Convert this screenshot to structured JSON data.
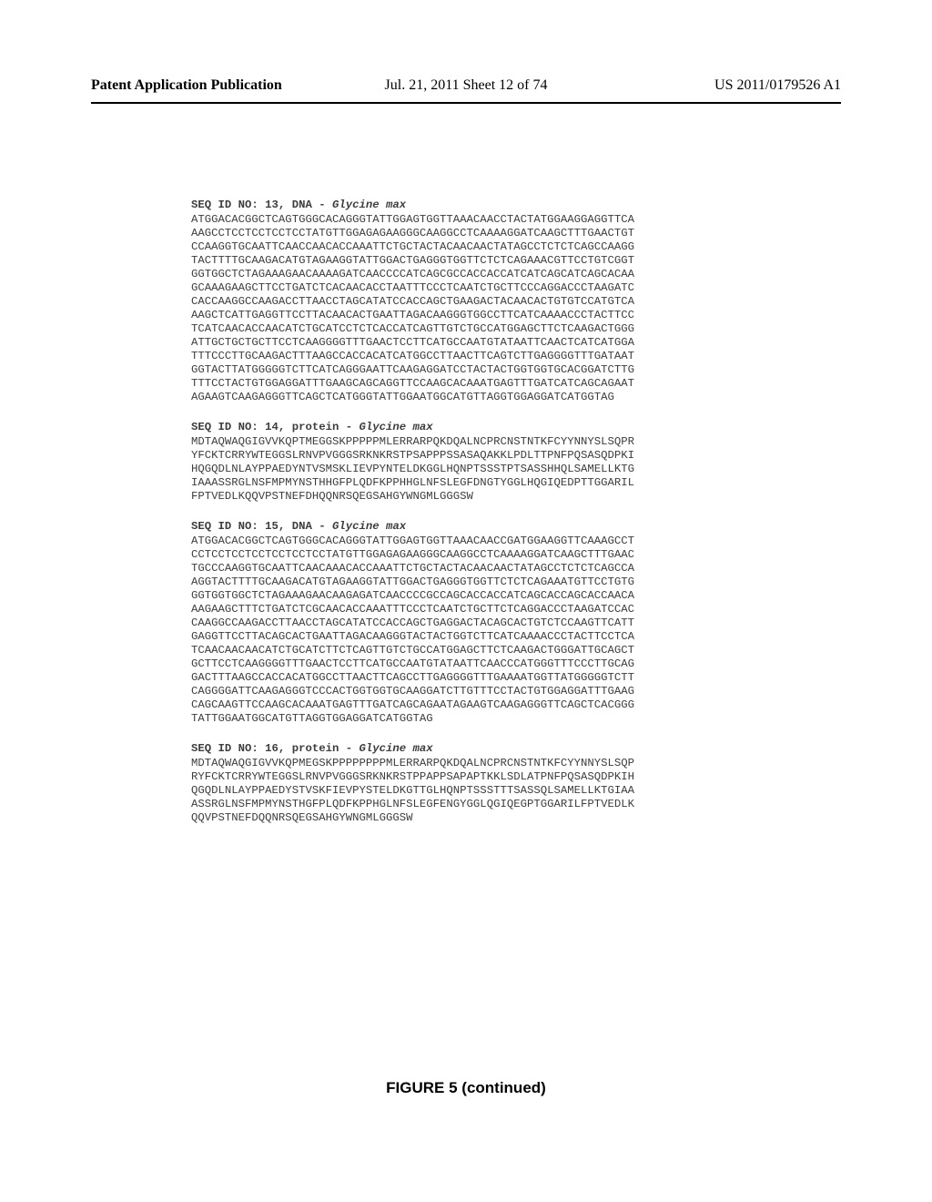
{
  "header": {
    "left": "Patent Application Publication",
    "middle": "Jul. 21, 2011  Sheet 12 of 74",
    "right": "US 2011/0179526 A1"
  },
  "figure_caption": "FIGURE 5 (continued)",
  "sequences": [
    {
      "title_prefix": "SEQ ID NO: 13, DNA - ",
      "organism": "Glycine max",
      "lines": [
        "ATGGACACGGCTCAGTGGGCACAGGGTATTGGAGTGGTTAAACAACCTACTATGGAAGGAGGTTCA",
        "AAGCCTCCTCCTCCTCCTATGTTGGAGAGAAGGGCAAGGCCTCAAAAGGATCAAGCTTTGAACTGT",
        "CCAAGGTGCAATTCAACCAACACCAAATTCTGCTACTACAACAACTATAGCCTCTCTCAGCCAAGG",
        "TACTTTTGCAAGACATGTAGAAGGTATTGGACTGAGGGTGGTTCTCTCAGAAACGTTCCTGTCGGT",
        "GGTGGCTCTAGAAAGAACAAAAGATCAACCCCATCAGCGCCACCACCATCATCAGCATCAGCACAA",
        "GCAAAGAAGCTTCCTGATCTCACAACACCTAATTTCCCTCAATCTGCTTCCCAGGACCCTAAGATC",
        "CACCAAGGCCAAGACCTTAACCTAGCATATCCACCAGCTGAAGACTACAACACTGTGTCCATGTCA",
        "AAGCTCATTGAGGTTCCTTACAACACTGAATTAGACAAGGGTGGCCTTCATCAAAACCCTACTTCC",
        "TCATCAACACCAACATCTGCATCCTCTCACCATCAGTTGTCTGCCATGGAGCTTCTCAAGACTGGG",
        "ATTGCTGCTGCTTCCTCAAGGGGTTTGAACTCCTTCATGCCAATGTATAATTCAACTCATCATGGA",
        "TTTCCCTTGCAAGACTTTAAGCCACCACATCATGGCCTTAACTTCAGTCTTGAGGGGTTTGATAAT",
        "GGTACTTATGGGGGTCTTCATCAGGGAATTCAAGAGGATCCTACTACTGGTGGTGCACGGATCTTG",
        "TTTCCTACTGTGGAGGATTTGAAGCAGCAGGTTCCAAGCACAAATGAGTTTGATCATCAGCAGAAT",
        "AGAAGTCAAGAGGGTTCAGCTCATGGGTATTGGAATGGCATGTTAGGTGGAGGATCATGGTAG"
      ]
    },
    {
      "title_prefix": "SEQ ID NO: 14, protein - ",
      "organism": "Glycine max",
      "lines": [
        "MDTAQWAQGIGVVKQPTMEGGSKPPPPPMLERRARPQKDQALNCPRCNSTNTKFCYYNNYSLSQPR",
        "YFCKTCRRYWTEGGSLRNVPVGGGSRKNKRSTPSAPPPSSASAQAKKLPDLTTPNFPQSASQDPKI",
        "HQGQDLNLAYPPAEDYNTVSMSKLIEVPYNTELDKGGLHQNPTSSSTPTSASSHHQLSAMELLKTG",
        "IAAASSRGLNSFMPMYNSTHHGFPLQDFKPPHHGLNFSLEGFDNGTYGGLHQGIQEDPTTGGARIL",
        "FPTVEDLKQQVPSTNEFDHQQNRSQEGSAHGYWNGMLGGGSW"
      ]
    },
    {
      "title_prefix": "SEQ ID NO: 15, DNA - ",
      "organism": "Glycine max",
      "lines": [
        "ATGGACACGGCTCAGTGGGCACAGGGTATTGGAGTGGTTAAACAACCGATGGAAGGTTCAAAGCCT",
        "CCTCCTCCTCCTCCTCCTCCTATGTTGGAGAGAAGGGCAAGGCCTCAAAAGGATCAAGCTTTGAAC",
        "TGCCCAAGGTGCAATTCAACAAACACCAAATTCTGCTACTACAACAACTATAGCCTCTCTCAGCCA",
        "AGGTACTTTTGCAAGACATGTAGAAGGTATTGGACTGAGGGTGGTTCTCTCAGAAATGTTCCTGTG",
        "GGTGGTGGCTCTAGAAAGAACAAGAGATCAACCCCGCCAGCACCACCATCAGCACCAGCACCAACA",
        "AAGAAGCTTTCTGATCTCGCAACACCAAATTTCCCTCAATCTGCTTCTCAGGACCCTAAGATCCAC",
        "CAAGGCCAAGACCTTAACCTAGCATATCCACCAGCTGAGGACTACAGCACTGTCTCCAAGTTCATT",
        "GAGGTTCCTTACAGCACTGAATTAGACAAGGGTACTACTGGTCTTCATCAAAACCCTACTTCCTCA",
        "TCAACAACAACATCTGCATCTTCTCAGTTGTCTGCCATGGAGCTTCTCAAGACTGGGATTGCAGCT",
        "GCTTCCTCAAGGGGTTTGAACTCCTTCATGCCAATGTATAATTCAACCCATGGGTTTCCCTTGCAG",
        "GACTTTAAGCCACCACATGGCCTTAACTTCAGCCTTGAGGGGTTTGAAAATGGTTATGGGGGTCTT",
        "CAGGGGATTCAAGAGGGTCCCACTGGTGGTGCAAGGATCTTGTTTCCTACTGTGGAGGATTTGAAG",
        "CAGCAAGTTCCAAGCACAAATGAGTTTGATCAGCAGAATAGAAGTCAAGAGGGTTCAGCTCACGGG",
        "TATTGGAATGGCATGTTAGGTGGAGGATCATGGTAG"
      ]
    },
    {
      "title_prefix": "SEQ ID NO: 16, protein - ",
      "organism": "Glycine max",
      "lines": [
        "MDTAQWAQGIGVVKQPMEGSKPPPPPPPPMLERRARPQKDQALNCPRCNSTNTKFCYYNNYSLSQP",
        "RYFCKTCRRYWTEGGSLRNVPVGGGSRKNKRSTPPAPPSAPAPTKKLSDLATPNFPQSASQDPKIH",
        "QGQDLNLAYPPAEDYSTVSKFIEVPYSTELDKGTTGLHQNPTSSSTTTSASSQLSAMELLKTGIAA",
        "ASSRGLNSFMPMYNSTHGFPLQDFKPPHGLNFSLEGFENGYGGLQGIQEGPTGGARILFPTVEDLK",
        "QQVPSTNEFDQQNRSQEGSAHGYWNGMLGGGSW"
      ]
    }
  ]
}
